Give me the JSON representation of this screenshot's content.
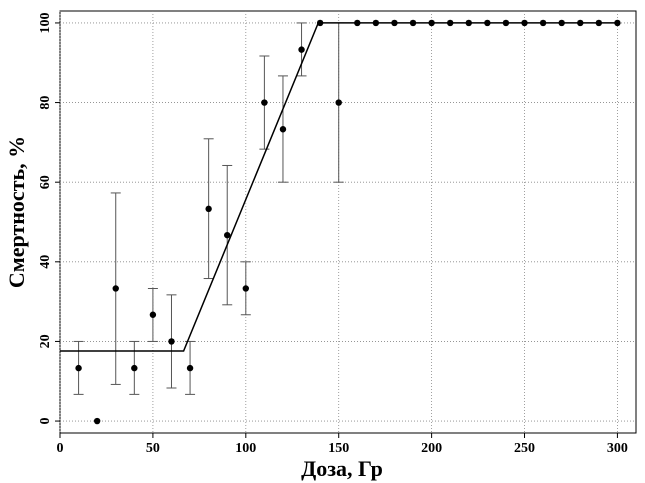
{
  "chart_data": {
    "type": "scatter",
    "xlabel": "Доза, Гр",
    "ylabel": "Смертность, %",
    "xlim": [
      0,
      310
    ],
    "ylim": [
      -3,
      103
    ],
    "x_ticks": [
      0,
      50,
      100,
      150,
      200,
      250,
      300
    ],
    "y_ticks": [
      0,
      20,
      40,
      60,
      80,
      100
    ],
    "grid": true,
    "points": [
      {
        "x": 10,
        "y": 13.3,
        "err_low": 6.7,
        "err_high": 20
      },
      {
        "x": 20,
        "y": 0
      },
      {
        "x": 30,
        "y": 33.3,
        "err_low": 9.2,
        "err_high": 57.3
      },
      {
        "x": 40,
        "y": 13.3,
        "err_low": 6.7,
        "err_high": 20
      },
      {
        "x": 50,
        "y": 26.7,
        "err_low": 20,
        "err_high": 33.3
      },
      {
        "x": 60,
        "y": 20,
        "err_low": 8.3,
        "err_high": 31.7
      },
      {
        "x": 70,
        "y": 13.3,
        "err_low": 6.7,
        "err_high": 20
      },
      {
        "x": 80,
        "y": 53.3,
        "err_low": 35.8,
        "err_high": 70.9
      },
      {
        "x": 90,
        "y": 46.7,
        "err_low": 29.2,
        "err_high": 64.2
      },
      {
        "x": 100,
        "y": 33.3,
        "err_low": 26.7,
        "err_high": 40
      },
      {
        "x": 110,
        "y": 80,
        "err_low": 68.3,
        "err_high": 91.7
      },
      {
        "x": 120,
        "y": 73.3,
        "err_low": 60,
        "err_high": 86.7
      },
      {
        "x": 130,
        "y": 93.3,
        "err_low": 86.7,
        "err_high": 100
      },
      {
        "x": 140,
        "y": 100
      },
      {
        "x": 150,
        "y": 80,
        "err_low": 60,
        "err_high": 100
      },
      {
        "x": 160,
        "y": 100
      },
      {
        "x": 170,
        "y": 100
      },
      {
        "x": 180,
        "y": 100
      },
      {
        "x": 190,
        "y": 100
      },
      {
        "x": 200,
        "y": 100
      },
      {
        "x": 210,
        "y": 100
      },
      {
        "x": 220,
        "y": 100
      },
      {
        "x": 230,
        "y": 100
      },
      {
        "x": 240,
        "y": 100
      },
      {
        "x": 250,
        "y": 100
      },
      {
        "x": 260,
        "y": 100
      },
      {
        "x": 270,
        "y": 100
      },
      {
        "x": 280,
        "y": 100
      },
      {
        "x": 290,
        "y": 100
      },
      {
        "x": 300,
        "y": 100
      }
    ],
    "fit_line": [
      {
        "x": 0,
        "y": 17.6
      },
      {
        "x": 66.5,
        "y": 17.6
      },
      {
        "x": 139,
        "y": 100
      },
      {
        "x": 300,
        "y": 100
      }
    ],
    "colors": {
      "points": "#000000",
      "fit": "#000000",
      "errorbars": "#555555",
      "grid": "#888888"
    }
  }
}
